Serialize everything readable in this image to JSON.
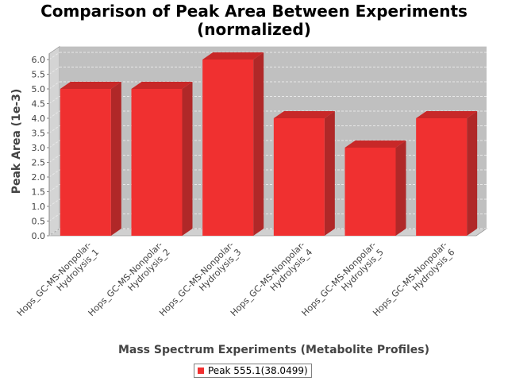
{
  "title": {
    "line1": "Comparison of Peak Area Between Experiments",
    "line2": "(normalized)"
  },
  "legend": {
    "label": "Peak 555.1(38.0499)"
  },
  "colors": {
    "bar_front": "#f03030",
    "bar_side": "#b02828",
    "bar_top": "#c82828",
    "plot_back": "#c0c0c0",
    "plot_floor": "#d0d0d0",
    "grid": "#e8e8e8",
    "axis_text": "#444444"
  },
  "chart_data": {
    "type": "bar",
    "title": "Comparison of Peak Area Between Experiments (normalized)",
    "xlabel": "Mass Spectrum Experiments (Metabolite Profiles)",
    "ylabel": "Peak Area (1e-3)",
    "ylim": [
      0,
      6.2
    ],
    "yticks": [
      "0.0",
      "0.5",
      "1.0",
      "1.5",
      "2.0",
      "2.5",
      "3.0",
      "3.5",
      "4.0",
      "4.5",
      "5.0",
      "5.5",
      "6.0"
    ],
    "grid": true,
    "legend_position": "bottom",
    "categories": [
      [
        "Hops_GC-MS-Nonpolar-",
        "Hydrolysis_1"
      ],
      [
        "Hops_GC-MS-Nonpolar-",
        "Hydrolysis_2"
      ],
      [
        "Hops_GC-MS-Nonpolar-",
        "Hydrolysis_3"
      ],
      [
        "Hops_GC-MS-Nonpolar-",
        "Hydrolysis_4"
      ],
      [
        "Hops_GC-MS-Nonpolar-",
        "Hydrolysis_5"
      ],
      [
        "Hops_GC-MS-Nonpolar-",
        "Hydrolysis_6"
      ]
    ],
    "series": [
      {
        "name": "Peak 555.1(38.0499)",
        "values": [
          5.0,
          5.0,
          6.0,
          4.0,
          3.0,
          4.0
        ]
      }
    ]
  }
}
